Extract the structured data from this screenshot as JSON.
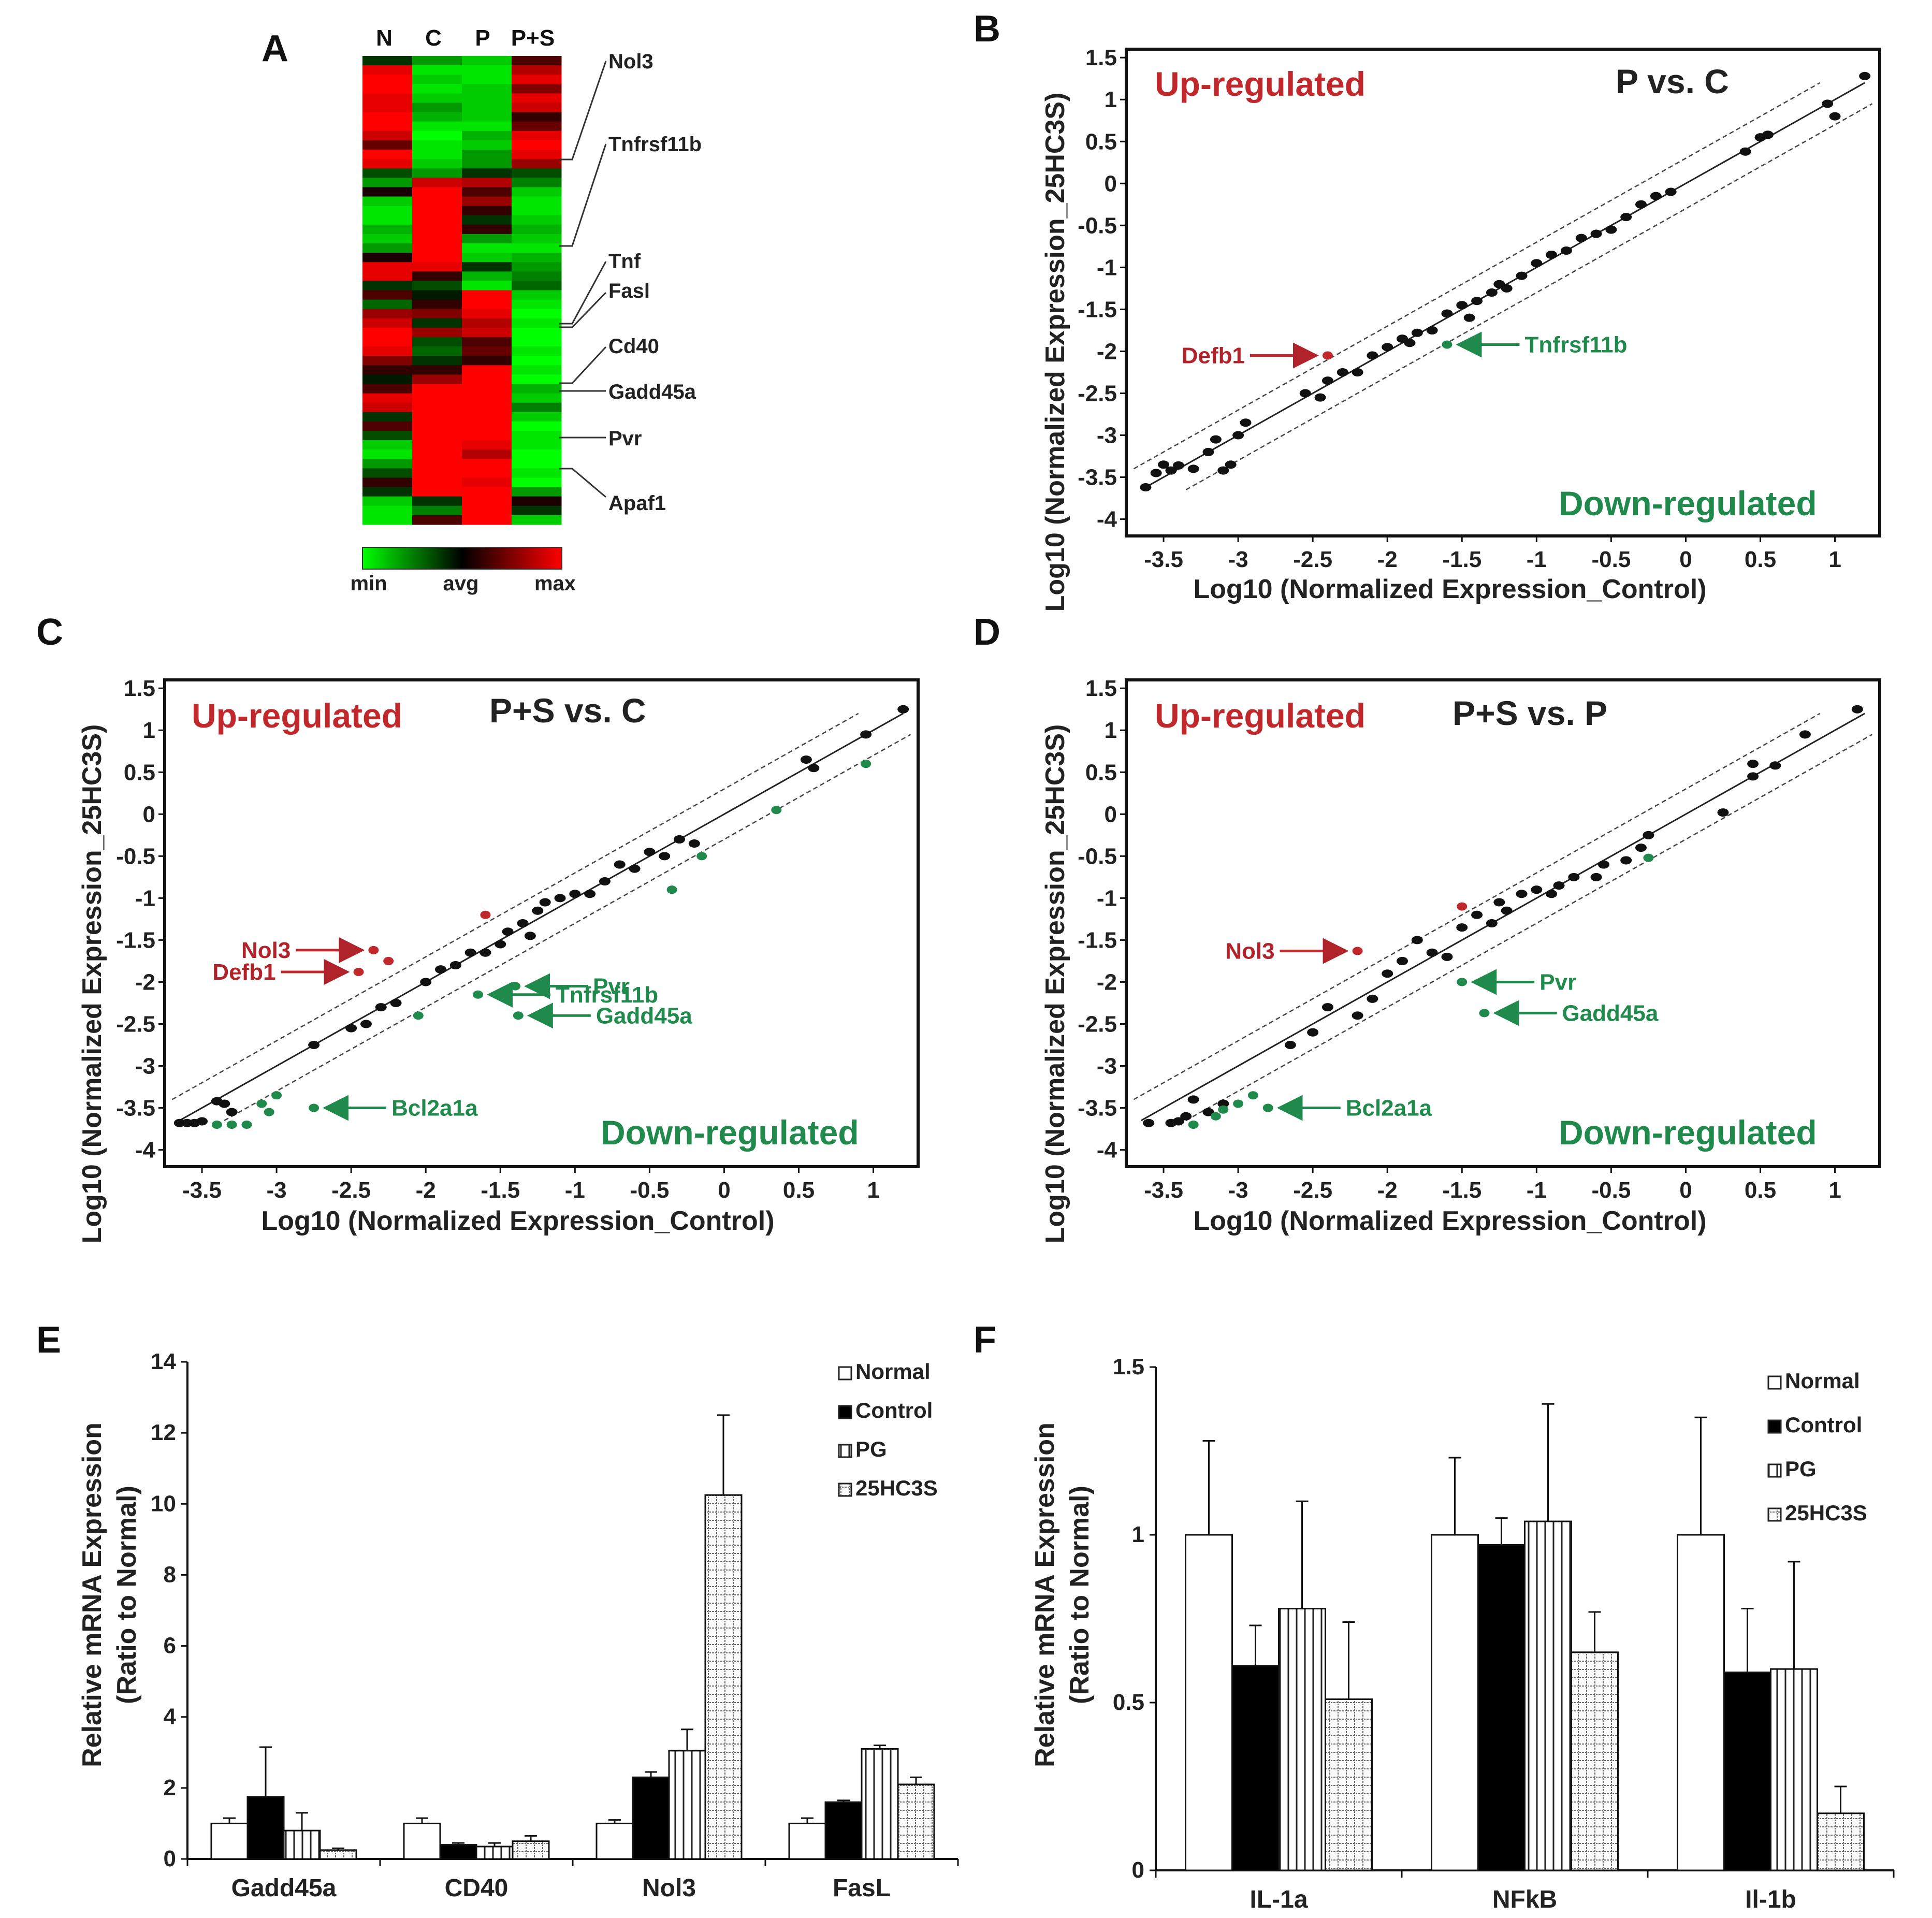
{
  "panels": {
    "a": "A",
    "b": "B",
    "c": "C",
    "d": "D",
    "e": "E",
    "f": "F"
  },
  "heatmap": {
    "columns": [
      "N",
      "C",
      "P",
      "P+S"
    ],
    "genes": [
      "Nol3",
      "Tnfrsf11b",
      "Tnf",
      "Fasl",
      "Cd40",
      "Gadd45a",
      "Pvr",
      "Apaf1"
    ],
    "colorbar": {
      "min": "min",
      "avg": "avg",
      "max": "max"
    },
    "colors": {
      "low": "#00ff00",
      "mid": "#000000",
      "high": "#ff0000"
    },
    "columnA": [
      -0.2,
      0.9,
      1,
      1,
      0.9,
      0.9,
      1,
      1,
      0.8,
      0.4,
      1,
      0.9,
      -0.3,
      -0.6,
      0.1,
      -0.8,
      -0.9,
      -0.9,
      -0.7,
      -0.8,
      -0.6,
      0.1,
      0.9,
      0.9,
      -0.2,
      0.3,
      -0.4,
      0.6,
      0.8,
      1,
      1,
      0.9,
      0.5,
      0.2,
      -0.1,
      0.3,
      0.9,
      0.8,
      -0.2,
      0.3,
      -0.3,
      -0.8,
      -0.9,
      -0.6,
      -0.3,
      0.2,
      -0.2,
      -0.8,
      -0.9,
      -0.9
    ],
    "columnB": [
      -0.6,
      -0.9,
      -0.8,
      -0.9,
      -0.8,
      -0.6,
      -0.7,
      -0.9,
      -1,
      -0.9,
      -0.9,
      -0.8,
      -0.6,
      0.8,
      1,
      1,
      1,
      1,
      1,
      1,
      1,
      1,
      0.9,
      0.2,
      -0.3,
      -0.1,
      0.2,
      0.5,
      -0.2,
      0.6,
      -0.3,
      -0.4,
      -0.2,
      0.2,
      0.6,
      1,
      1,
      1,
      1,
      1,
      1,
      1,
      1,
      1,
      1,
      1,
      1,
      -0.2,
      -0.5,
      0.3
    ],
    "columnC": [
      -0.8,
      -0.9,
      -0.9,
      -0.8,
      -0.8,
      -0.8,
      -0.8,
      -0.9,
      -0.7,
      -0.8,
      -0.6,
      -0.6,
      -0.2,
      0.7,
      0.3,
      0.6,
      0.2,
      -0.2,
      0.2,
      -0.6,
      -0.9,
      -0.8,
      -0.2,
      -0.7,
      -0.9,
      1,
      1,
      0.9,
      0.7,
      0.8,
      0.3,
      0.4,
      0.2,
      1,
      1,
      1,
      1,
      1,
      1,
      1,
      1,
      0.9,
      0.7,
      1,
      1,
      0.9,
      1,
      1,
      1,
      1
    ],
    "columnD": [
      0.3,
      0.7,
      0.9,
      0.5,
      0.9,
      0.8,
      0.2,
      0.4,
      0.9,
      1,
      0.9,
      0.6,
      -0.3,
      -0.5,
      -0.8,
      -0.9,
      -0.9,
      -0.8,
      -0.7,
      -0.8,
      -0.9,
      -0.7,
      -0.6,
      -0.5,
      -0.4,
      -0.8,
      -0.9,
      -1,
      -0.9,
      -1,
      -1,
      -0.9,
      -1,
      -0.9,
      -1,
      -0.7,
      -0.8,
      -0.5,
      -0.8,
      -1,
      -0.9,
      -0.9,
      -1,
      -1,
      -0.9,
      -1,
      -0.6,
      0.1,
      -0.2,
      -0.8
    ]
  },
  "scatter_labels": {
    "up": "Up-regulated",
    "down": "Down-regulated",
    "ytitle": "Log10 (Normalized  Expression_25HC3S)",
    "xtitle": "Log10 (Normalized  Expression_Control)"
  },
  "bar_legend": [
    "Normal",
    "Control",
    "PG",
    "25HC3S"
  ],
  "bar_ytitle_1": "Relative mRNA Expression",
  "bar_ytitle_2": "(Ratio to Normal)",
  "colors": {
    "red": "#c0282c",
    "green": "#1f8a4c",
    "point": "#111111"
  },
  "chart_data": [
    {
      "type": "heatmap",
      "title": "",
      "columns": [
        "N",
        "C",
        "P",
        "P+S"
      ],
      "labeled_genes": [
        "Nol3",
        "Tnfrsf11b",
        "Tnf",
        "Fasl",
        "Cd40",
        "Gadd45a",
        "Pvr",
        "Apaf1"
      ],
      "scale": [
        "min",
        "avg",
        "max"
      ]
    },
    {
      "type": "scatter",
      "title": "P vs. C",
      "xlabel": "Log10 (Normalized  Expression_Control)",
      "ylabel": "Log10 (Normalized  Expression_25HC3S)",
      "xlim": [
        -3.75,
        1.3
      ],
      "ylim": [
        -4.2,
        1.6
      ],
      "xticks": [
        -3.5,
        -3,
        -2.5,
        -2,
        -1.5,
        -1,
        -0.5,
        0,
        0.5,
        1
      ],
      "yticks": [
        1.5,
        1,
        0.5,
        0,
        -0.5,
        -1,
        -1.5,
        -2,
        -2.5,
        -3,
        -3.5,
        -4
      ],
      "fold_lines_offset": 0.3,
      "points": [
        [
          -3.62,
          -3.62
        ],
        [
          -3.55,
          -3.45
        ],
        [
          -3.5,
          -3.35
        ],
        [
          -3.45,
          -3.42
        ],
        [
          -3.4,
          -3.36
        ],
        [
          -3.3,
          -3.4
        ],
        [
          -3.2,
          -3.2
        ],
        [
          -3.15,
          -3.05
        ],
        [
          -3.1,
          -3.42
        ],
        [
          -3.05,
          -3.35
        ],
        [
          -3.0,
          -3.0
        ],
        [
          -2.95,
          -2.85
        ],
        [
          -2.55,
          -2.5
        ],
        [
          -2.45,
          -2.55
        ],
        [
          -2.4,
          -2.35
        ],
        [
          -2.3,
          -2.25
        ],
        [
          -2.2,
          -2.25
        ],
        [
          -2.1,
          -2.05
        ],
        [
          -2.0,
          -1.95
        ],
        [
          -1.9,
          -1.85
        ],
        [
          -1.85,
          -1.9
        ],
        [
          -1.8,
          -1.78
        ],
        [
          -1.7,
          -1.75
        ],
        [
          -1.6,
          -1.55
        ],
        [
          -1.5,
          -1.45
        ],
        [
          -1.45,
          -1.6
        ],
        [
          -1.4,
          -1.4
        ],
        [
          -1.3,
          -1.3
        ],
        [
          -1.25,
          -1.2
        ],
        [
          -1.2,
          -1.25
        ],
        [
          -1.1,
          -1.1
        ],
        [
          -1.0,
          -0.95
        ],
        [
          -0.9,
          -0.85
        ],
        [
          -0.8,
          -0.8
        ],
        [
          -0.7,
          -0.65
        ],
        [
          -0.6,
          -0.6
        ],
        [
          -0.5,
          -0.55
        ],
        [
          -0.4,
          -0.4
        ],
        [
          -0.3,
          -0.25
        ],
        [
          -0.2,
          -0.15
        ],
        [
          -0.1,
          -0.1
        ],
        [
          0.4,
          0.38
        ],
        [
          0.5,
          0.55
        ],
        [
          0.55,
          0.58
        ],
        [
          0.95,
          0.95
        ],
        [
          1.0,
          0.8
        ],
        [
          1.2,
          1.28
        ]
      ],
      "up_points": [
        [
          -2.4,
          -2.05
        ]
      ],
      "down_points": [
        [
          -1.6,
          -1.92
        ]
      ],
      "annotations": [
        {
          "text": "Defb1",
          "color": "red",
          "x": -2.4,
          "y": -2.05
        },
        {
          "text": "Tnfrsf11b",
          "color": "green",
          "x": -1.6,
          "y": -1.92
        }
      ]
    },
    {
      "type": "scatter",
      "title": "P+S vs. C",
      "xlabel": "Log10 (Normalized  Expression_Control)",
      "ylabel": "Log10 (Normalized  Expression_25HC3S)",
      "xlim": [
        -3.75,
        1.3
      ],
      "ylim": [
        -4.2,
        1.6
      ],
      "xticks": [
        -3.5,
        -3,
        -2.5,
        -2,
        -1.5,
        -1,
        -0.5,
        0,
        0.5,
        1
      ],
      "yticks": [
        1.5,
        1,
        0.5,
        0,
        -0.5,
        -1,
        -1.5,
        -2,
        -2.5,
        -3,
        -3.5,
        -4
      ],
      "fold_lines_offset": 0.3,
      "points": [
        [
          -3.65,
          -3.68
        ],
        [
          -3.6,
          -3.68
        ],
        [
          -3.55,
          -3.68
        ],
        [
          -3.5,
          -3.66
        ],
        [
          -3.4,
          -3.42
        ],
        [
          -3.35,
          -3.45
        ],
        [
          -3.3,
          -3.55
        ],
        [
          -2.75,
          -2.75
        ],
        [
          -2.5,
          -2.55
        ],
        [
          -2.4,
          -2.5
        ],
        [
          -2.3,
          -2.3
        ],
        [
          -2.2,
          -2.25
        ],
        [
          -2.0,
          -2.0
        ],
        [
          -1.9,
          -1.85
        ],
        [
          -1.8,
          -1.8
        ],
        [
          -1.7,
          -1.65
        ],
        [
          -1.6,
          -1.65
        ],
        [
          -1.5,
          -1.55
        ],
        [
          -1.45,
          -1.4
        ],
        [
          -1.35,
          -1.3
        ],
        [
          -1.3,
          -1.45
        ],
        [
          -1.25,
          -1.15
        ],
        [
          -1.2,
          -1.05
        ],
        [
          -1.1,
          -1.0
        ],
        [
          -1.0,
          -0.95
        ],
        [
          -0.9,
          -0.95
        ],
        [
          -0.8,
          -0.8
        ],
        [
          -0.7,
          -0.6
        ],
        [
          -0.6,
          -0.65
        ],
        [
          -0.5,
          -0.45
        ],
        [
          -0.4,
          -0.5
        ],
        [
          -0.3,
          -0.3
        ],
        [
          -0.2,
          -0.35
        ],
        [
          0.55,
          0.65
        ],
        [
          0.6,
          0.55
        ],
        [
          0.95,
          0.95
        ],
        [
          1.2,
          1.25
        ]
      ],
      "up_points": [
        [
          -2.35,
          -1.62
        ],
        [
          -2.25,
          -1.75
        ],
        [
          -2.45,
          -1.88
        ],
        [
          -1.6,
          -1.2
        ]
      ],
      "down_points": [
        [
          -3.4,
          -3.7
        ],
        [
          -3.3,
          -3.7
        ],
        [
          -3.2,
          -3.7
        ],
        [
          -3.1,
          -3.45
        ],
        [
          -3.05,
          -3.55
        ],
        [
          -3.0,
          -3.35
        ],
        [
          -2.75,
          -3.5
        ],
        [
          -2.05,
          -2.4
        ],
        [
          -1.65,
          -2.15
        ],
        [
          -1.4,
          -2.05
        ],
        [
          -1.38,
          -2.4
        ],
        [
          -0.35,
          -0.9
        ],
        [
          -0.15,
          -0.5
        ],
        [
          0.35,
          0.05
        ],
        [
          0.95,
          0.6
        ]
      ],
      "annotations": [
        {
          "text": "Nol3",
          "color": "red",
          "x": -2.35,
          "y": -1.62
        },
        {
          "text": "Defb1",
          "color": "red",
          "x": -2.45,
          "y": -1.88
        },
        {
          "text": "Pvr",
          "color": "green",
          "x": -1.4,
          "y": -2.05
        },
        {
          "text": "Tnfrsf11b",
          "color": "green",
          "x": -1.65,
          "y": -2.15
        },
        {
          "text": "Gadd45a",
          "color": "green",
          "x": -1.38,
          "y": -2.4
        },
        {
          "text": "Bcl2a1a",
          "color": "green",
          "x": -2.75,
          "y": -3.5
        }
      ]
    },
    {
      "type": "scatter",
      "title": "P+S vs. P",
      "xlabel": "Log10 (Normalized  Expression_Control)",
      "ylabel": "Log10 (Normalized  Expression_25HC3S)",
      "xlim": [
        -3.75,
        1.3
      ],
      "ylim": [
        -4.2,
        1.6
      ],
      "xticks": [
        -3.5,
        -3,
        -2.5,
        -2,
        -1.5,
        -1,
        -0.5,
        0,
        0.5,
        1
      ],
      "yticks": [
        1.5,
        1,
        0.5,
        0,
        -0.5,
        -1,
        -1.5,
        -2,
        -2.5,
        -3,
        -3.5,
        -4
      ],
      "fold_lines_offset": 0.3,
      "points": [
        [
          -3.6,
          -3.68
        ],
        [
          -3.45,
          -3.68
        ],
        [
          -3.4,
          -3.66
        ],
        [
          -3.35,
          -3.6
        ],
        [
          -3.3,
          -3.4
        ],
        [
          -3.2,
          -3.55
        ],
        [
          -3.1,
          -3.45
        ],
        [
          -2.65,
          -2.75
        ],
        [
          -2.5,
          -2.6
        ],
        [
          -2.4,
          -2.3
        ],
        [
          -2.2,
          -2.4
        ],
        [
          -2.1,
          -2.2
        ],
        [
          -2.0,
          -1.9
        ],
        [
          -1.9,
          -1.75
        ],
        [
          -1.8,
          -1.5
        ],
        [
          -1.7,
          -1.65
        ],
        [
          -1.6,
          -1.7
        ],
        [
          -1.5,
          -1.35
        ],
        [
          -1.4,
          -1.2
        ],
        [
          -1.3,
          -1.3
        ],
        [
          -1.25,
          -1.05
        ],
        [
          -1.2,
          -1.15
        ],
        [
          -1.1,
          -0.95
        ],
        [
          -1.0,
          -0.9
        ],
        [
          -0.9,
          -0.95
        ],
        [
          -0.85,
          -0.85
        ],
        [
          -0.75,
          -0.75
        ],
        [
          -0.6,
          -0.75
        ],
        [
          -0.55,
          -0.6
        ],
        [
          -0.4,
          -0.55
        ],
        [
          -0.3,
          -0.4
        ],
        [
          -0.25,
          -0.25
        ],
        [
          0.25,
          0.02
        ],
        [
          0.45,
          0.45
        ],
        [
          0.45,
          0.6
        ],
        [
          0.6,
          0.58
        ],
        [
          0.8,
          0.95
        ],
        [
          1.15,
          1.25
        ]
      ],
      "up_points": [
        [
          -2.2,
          -1.63
        ],
        [
          -1.5,
          -1.1
        ]
      ],
      "down_points": [
        [
          -3.3,
          -3.7
        ],
        [
          -3.15,
          -3.6
        ],
        [
          -3.1,
          -3.52
        ],
        [
          -3.0,
          -3.45
        ],
        [
          -2.9,
          -3.35
        ],
        [
          -2.8,
          -3.5
        ],
        [
          -1.5,
          -2.0
        ],
        [
          -1.35,
          -2.37
        ],
        [
          -0.25,
          -0.52
        ]
      ],
      "annotations": [
        {
          "text": "Nol3",
          "color": "red",
          "x": -2.2,
          "y": -1.63
        },
        {
          "text": "Pvr",
          "color": "green",
          "x": -1.5,
          "y": -2.0
        },
        {
          "text": "Gadd45a",
          "color": "green",
          "x": -1.35,
          "y": -2.37
        },
        {
          "text": "Bcl2a1a",
          "color": "green",
          "x": -2.8,
          "y": -3.5
        }
      ]
    },
    {
      "type": "bar",
      "title": "",
      "categories": [
        "Gadd45a",
        "CD40",
        "Nol3",
        "FasL"
      ],
      "ylabel": "Relative mRNA Expression (Ratio to Normal)",
      "ylim": [
        0,
        14
      ],
      "yticks": [
        0,
        2,
        4,
        6,
        8,
        10,
        12,
        14
      ],
      "series": [
        {
          "name": "Normal",
          "values": [
            1.0,
            1.0,
            1.0,
            1.0
          ],
          "errors": [
            0.15,
            0.15,
            0.1,
            0.15
          ]
        },
        {
          "name": "Control",
          "values": [
            1.75,
            0.4,
            2.3,
            1.6
          ],
          "errors": [
            1.4,
            0.05,
            0.15,
            0.05
          ]
        },
        {
          "name": "PG",
          "values": [
            0.8,
            0.35,
            3.05,
            3.1
          ],
          "errors": [
            0.5,
            0.1,
            0.6,
            0.1
          ]
        },
        {
          "name": "25HC3S",
          "values": [
            0.25,
            0.5,
            10.25,
            2.1
          ],
          "errors": [
            0.05,
            0.15,
            2.25,
            0.2
          ]
        }
      ]
    },
    {
      "type": "bar",
      "title": "",
      "categories": [
        "IL-1a",
        "NFkB",
        "Il-1b"
      ],
      "ylabel": "Relative mRNA Expression (Ratio to Normal)",
      "ylim": [
        0,
        1.5
      ],
      "yticks": [
        0,
        0.5,
        1,
        1.5
      ],
      "series": [
        {
          "name": "Normal",
          "values": [
            1.0,
            1.0,
            1.0
          ],
          "errors": [
            0.28,
            0.23,
            0.35
          ]
        },
        {
          "name": "Control",
          "values": [
            0.61,
            0.97,
            0.59
          ],
          "errors": [
            0.12,
            0.08,
            0.19
          ]
        },
        {
          "name": "PG",
          "values": [
            0.78,
            1.04,
            0.6
          ],
          "errors": [
            0.32,
            0.35,
            0.32
          ]
        },
        {
          "name": "25HC3S",
          "values": [
            0.51,
            0.65,
            0.17
          ],
          "errors": [
            0.23,
            0.12,
            0.08
          ]
        }
      ]
    }
  ]
}
